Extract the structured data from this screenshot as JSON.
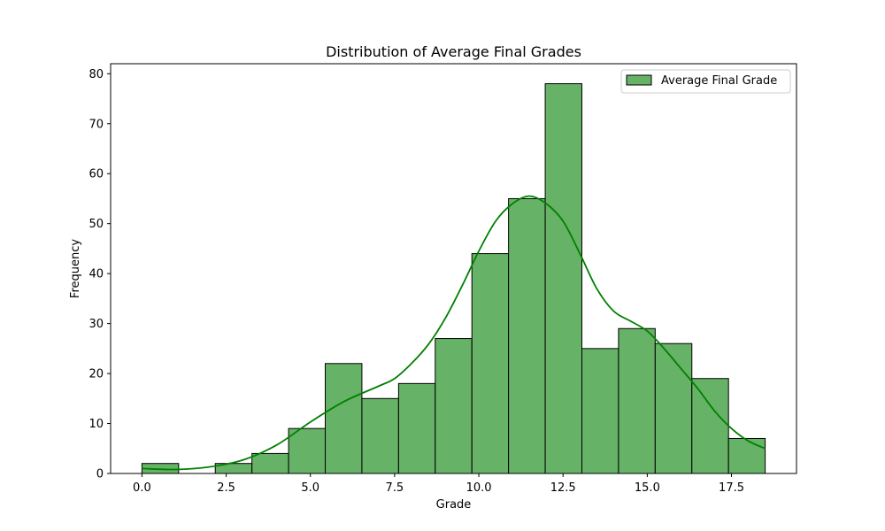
{
  "chart_data": {
    "type": "bar",
    "title": "Distribution of Average Final Grades",
    "xlabel": "Grade",
    "ylabel": "Frequency",
    "xlim": [
      -0.93,
      19.43
    ],
    "ylim": [
      0,
      82
    ],
    "x_ticks": [
      0.0,
      2.5,
      5.0,
      7.5,
      10.0,
      12.5,
      15.0,
      17.5
    ],
    "x_tick_labels": [
      "0.0",
      "2.5",
      "5.0",
      "7.5",
      "10.0",
      "12.5",
      "15.0",
      "17.5"
    ],
    "y_ticks": [
      0,
      10,
      20,
      30,
      40,
      50,
      60,
      70,
      80
    ],
    "y_tick_labels": [
      "0",
      "10",
      "20",
      "30",
      "40",
      "50",
      "60",
      "70",
      "80"
    ],
    "bin_edges": [
      0.0,
      1.088,
      2.176,
      3.265,
      4.353,
      5.441,
      6.529,
      7.618,
      8.706,
      9.794,
      10.882,
      11.971,
      13.059,
      14.147,
      15.235,
      16.324,
      17.412,
      18.5
    ],
    "series": [
      {
        "name": "Average Final Grade",
        "values": [
          2,
          0,
          2,
          4,
          9,
          22,
          15,
          18,
          27,
          44,
          55,
          78,
          25,
          29,
          26,
          19,
          7
        ]
      }
    ],
    "kde_curve": {
      "x": [
        0.0,
        1.0,
        2.0,
        3.0,
        4.0,
        5.0,
        6.0,
        7.0,
        7.5,
        8.0,
        8.5,
        9.0,
        9.5,
        10.0,
        10.5,
        11.0,
        11.5,
        12.0,
        12.5,
        13.0,
        13.5,
        14.0,
        14.5,
        15.0,
        15.5,
        16.0,
        16.5,
        17.0,
        17.5,
        18.0,
        18.5
      ],
      "y": [
        1.0,
        0.8,
        1.3,
        2.7,
        5.7,
        10.3,
        14.4,
        17.4,
        19.0,
        22.0,
        25.8,
        31.0,
        37.5,
        44.5,
        50.5,
        54.0,
        55.5,
        54.0,
        50.5,
        44.0,
        37.0,
        32.5,
        30.5,
        28.5,
        25.0,
        21.0,
        17.0,
        12.5,
        9.0,
        6.5,
        5.0
      ]
    },
    "grid": false,
    "legend_position": "top-right",
    "colors": {
      "bar_fill": "#66b266",
      "bar_edge": "#000000",
      "kde_line": "#008000"
    }
  }
}
